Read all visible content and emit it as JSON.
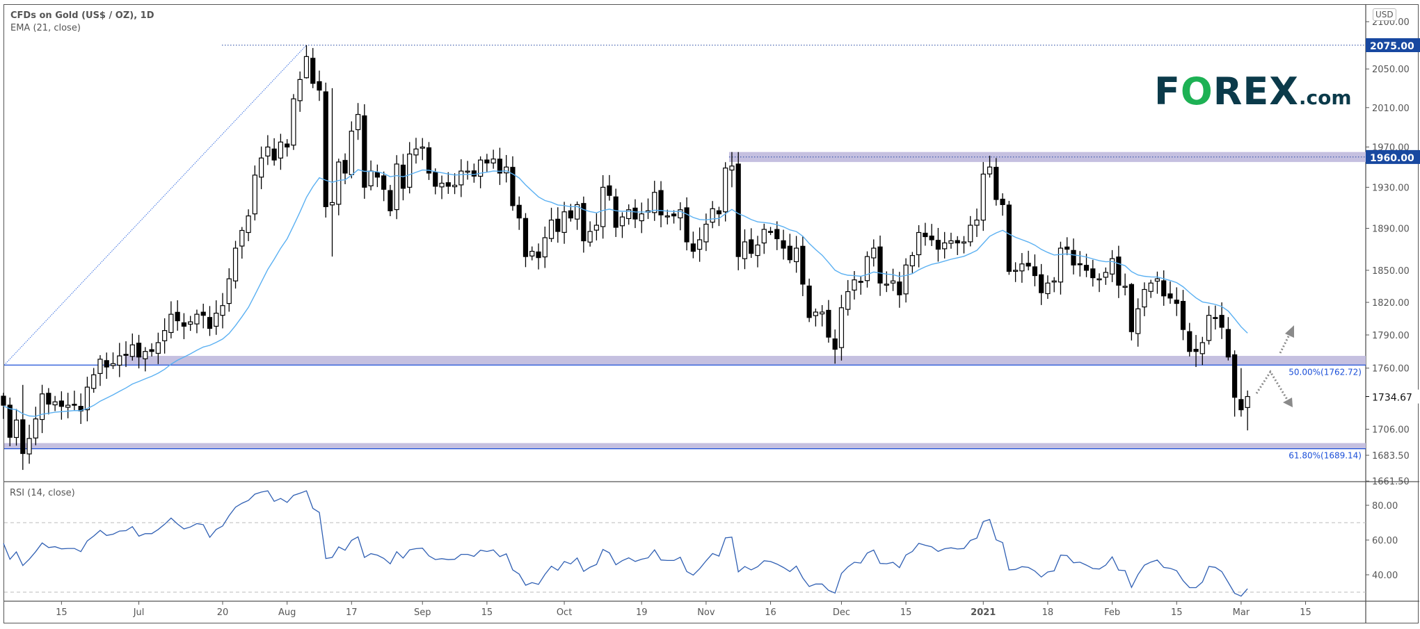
{
  "header": {
    "title": "CFDs on Gold (US$ / OZ), 1D",
    "indicator": "EMA (21, close)",
    "rsi_label": "RSI (14, close)",
    "currency": "USD"
  },
  "logo": {
    "brand_f": "F",
    "brand_o": "O",
    "brand_rest": "REX",
    "suffix": ".com"
  },
  "colors": {
    "ema": "#5ab0f2",
    "rsi": "#2f5fb3",
    "zone": "#c5c0e0",
    "fib_line": "#1b4fd8",
    "price_tag": "#1848a0",
    "arrow": "#8a8a8a",
    "bull_fill": "#ffffff",
    "bear_fill": "#000000"
  },
  "chart_data": [
    {
      "type": "candlestick",
      "title": "CFDs on Gold (US$ / OZ), 1D",
      "scale": "log",
      "ylim": [
        1655,
        2110
      ],
      "y_ticks": [
        "2100.00",
        "2075.00",
        "2050.00",
        "2010.00",
        "1970.00",
        "1960.00",
        "1930.00",
        "1890.00",
        "1850.00",
        "1820.00",
        "1790.00",
        "1760.00",
        "1734.67",
        "1706.00",
        "1683.50",
        "1661.50"
      ],
      "y_tick_values": [
        2100,
        2075,
        2050,
        2010,
        1970,
        1960,
        1930,
        1890,
        1850,
        1820,
        1790,
        1760,
        1734.67,
        1706,
        1683.5,
        1661.5
      ],
      "highlighted_prices": [
        {
          "label": "2075.00",
          "value": 2075
        },
        {
          "label": "1960.00",
          "value": 1960
        }
      ],
      "last_price": {
        "label": "1734.67",
        "value": 1734.67
      },
      "x_ticks": [
        {
          "label": "15",
          "bar": 9
        },
        {
          "label": "Jul",
          "bar": 21
        },
        {
          "label": "20",
          "bar": 34
        },
        {
          "label": "Aug",
          "bar": 44
        },
        {
          "label": "17",
          "bar": 54
        },
        {
          "label": "Sep",
          "bar": 65
        },
        {
          "label": "15",
          "bar": 75
        },
        {
          "label": "Oct",
          "bar": 87
        },
        {
          "label": "19",
          "bar": 99
        },
        {
          "label": "Nov",
          "bar": 109
        },
        {
          "label": "16",
          "bar": 119
        },
        {
          "label": "Dec",
          "bar": 130
        },
        {
          "label": "15",
          "bar": 140
        },
        {
          "label": "2021",
          "bar": 152
        },
        {
          "label": "18",
          "bar": 162
        },
        {
          "label": "Feb",
          "bar": 172
        },
        {
          "label": "15",
          "bar": 182
        },
        {
          "label": "Mar",
          "bar": 192
        },
        {
          "label": "15",
          "bar": 202
        }
      ],
      "warmup_closes": [
        1698,
        1702,
        1716,
        1731,
        1743,
        1733,
        1745,
        1748,
        1725,
        1734,
        1709,
        1708,
        1719,
        1730,
        1740
      ],
      "closes": [
        1727,
        1699,
        1714,
        1685,
        1698,
        1715,
        1737,
        1728,
        1730,
        1726,
        1727,
        1727,
        1722,
        1743,
        1754,
        1768,
        1761,
        1764,
        1771,
        1772,
        1781,
        1770,
        1775,
        1775,
        1783,
        1794,
        1809,
        1803,
        1798,
        1802,
        1809,
        1808,
        1796,
        1810,
        1817,
        1842,
        1871,
        1888,
        1902,
        1942,
        1959,
        1970,
        1957,
        1975,
        1970,
        2019,
        2039,
        2063,
        2035,
        2028,
        1911,
        1915,
        1955,
        1944,
        1986,
        2003,
        1930,
        1946,
        1940,
        1928,
        1907,
        1953,
        1929,
        1963,
        1968,
        1970,
        1944,
        1931,
        1934,
        1931,
        1932,
        1946,
        1946,
        1941,
        1957,
        1954,
        1958,
        1944,
        1950,
        1912,
        1900,
        1863,
        1868,
        1862,
        1881,
        1898,
        1887,
        1906,
        1900,
        1913,
        1878,
        1887,
        1893,
        1930,
        1922,
        1891,
        1901,
        1908,
        1899,
        1904,
        1907,
        1925,
        1903,
        1902,
        1902,
        1908,
        1877,
        1868,
        1879,
        1894,
        1909,
        1904,
        1949,
        1951,
        1863,
        1877,
        1866,
        1874,
        1889,
        1887,
        1880,
        1871,
        1860,
        1871,
        1837,
        1806,
        1811,
        1811,
        1788,
        1777,
        1815,
        1830,
        1841,
        1839,
        1863,
        1871,
        1838,
        1837,
        1840,
        1827,
        1855,
        1864,
        1886,
        1882,
        1879,
        1870,
        1876,
        1878,
        1876,
        1877,
        1893,
        1898,
        1943,
        1950,
        1918,
        1913,
        1849,
        1850,
        1856,
        1854,
        1845,
        1829,
        1838,
        1840,
        1871,
        1870,
        1855,
        1856,
        1850,
        1843,
        1842,
        1848,
        1861,
        1836,
        1835,
        1793,
        1814,
        1832,
        1838,
        1842,
        1826,
        1824,
        1819,
        1795,
        1775,
        1775,
        1783,
        1808,
        1806,
        1797,
        1770,
        1734,
        1723,
        1734.67
      ],
      "extremes": [
        [
          3,
          1745,
          1671
        ],
        [
          47,
          2075,
          2040
        ],
        [
          48,
          2072,
          2030
        ],
        [
          51,
          2030,
          1863
        ],
        [
          113,
          1965,
          1930
        ],
        [
          114,
          1965,
          1850
        ],
        [
          129,
          1795,
          1764
        ],
        [
          154,
          1959,
          1912
        ],
        [
          175,
          1838,
          1785
        ],
        [
          185,
          1790,
          1761
        ],
        [
          191,
          1776,
          1717
        ],
        [
          192,
          1760,
          1717
        ],
        [
          193,
          1740,
          1705
        ]
      ],
      "ema": {
        "label": "EMA (21, close)",
        "period": 21
      },
      "levels": [
        {
          "name": "resistance-zone-1960",
          "low": 1955,
          "high": 1965,
          "start_bar": 113
        },
        {
          "name": "fib-50",
          "label": "50.00%(1762.72)",
          "value": 1762.72,
          "zone_high": 1771
        },
        {
          "name": "fib-61.8",
          "label": "61.80%(1689.14)",
          "value": 1689.14,
          "zone_high": 1694
        }
      ],
      "fib_trendline": {
        "from_price": 1762.72,
        "to_price": 2075,
        "to_bar": 47
      }
    },
    {
      "type": "line",
      "title": "RSI (14, close)",
      "period": 14,
      "ylim": [
        20,
        93
      ],
      "y_ticks": [
        "80.00",
        "60.00",
        "40.00"
      ],
      "y_tick_values": [
        80,
        60,
        40
      ],
      "bands": [
        70,
        30
      ]
    }
  ]
}
